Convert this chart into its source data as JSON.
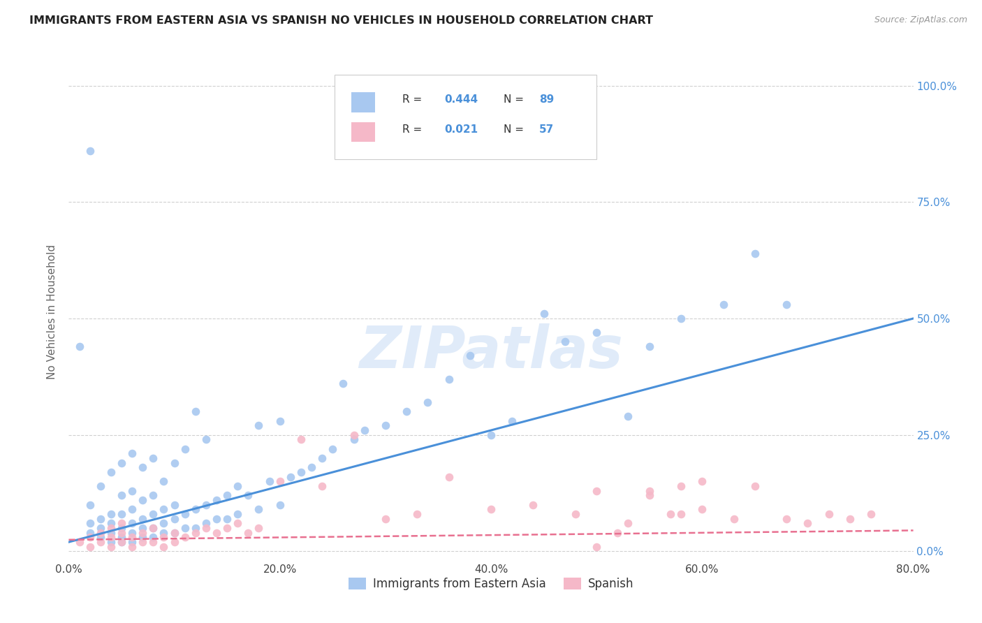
{
  "title": "IMMIGRANTS FROM EASTERN ASIA VS SPANISH NO VEHICLES IN HOUSEHOLD CORRELATION CHART",
  "source": "Source: ZipAtlas.com",
  "ylabel": "No Vehicles in Household",
  "xlim": [
    0.0,
    0.8
  ],
  "ylim": [
    -0.02,
    1.05
  ],
  "ytick_labels": [
    "0.0%",
    "25.0%",
    "50.0%",
    "75.0%",
    "100.0%"
  ],
  "ytick_vals": [
    0.0,
    0.25,
    0.5,
    0.75,
    1.0
  ],
  "xtick_labels": [
    "0.0%",
    "",
    "",
    "",
    "",
    "20.0%",
    "",
    "",
    "",
    "",
    "40.0%",
    "",
    "",
    "",
    "",
    "60.0%",
    "",
    "",
    "",
    "",
    "80.0%"
  ],
  "xtick_vals": [
    0.0,
    0.04,
    0.08,
    0.12,
    0.16,
    0.2,
    0.24,
    0.28,
    0.32,
    0.36,
    0.4,
    0.44,
    0.48,
    0.52,
    0.56,
    0.6,
    0.64,
    0.68,
    0.72,
    0.76,
    0.8
  ],
  "xtick_show_labels": [
    "0.0%",
    "20.0%",
    "40.0%",
    "60.0%",
    "80.0%"
  ],
  "xtick_show_vals": [
    0.0,
    0.2,
    0.4,
    0.6,
    0.8
  ],
  "blue_color": "#a8c8f0",
  "pink_color": "#f5b8c8",
  "blue_line_color": "#4a90d9",
  "pink_line_color": "#e87090",
  "title_color": "#222222",
  "source_color": "#999999",
  "axis_label_color": "#666666",
  "right_tick_color": "#4a90d9",
  "watermark": "ZIPatlas",
  "blue_trend_x": [
    0.0,
    0.8
  ],
  "blue_trend_y": [
    0.02,
    0.5
  ],
  "pink_trend_x": [
    0.0,
    0.8
  ],
  "pink_trend_y": [
    0.025,
    0.045
  ],
  "legend_label1": "Immigrants from Eastern Asia",
  "legend_label2": "Spanish",
  "background_color": "#ffffff",
  "grid_color": "#d0d0d0",
  "blue_scatter_x": [
    0.01,
    0.02,
    0.02,
    0.02,
    0.03,
    0.03,
    0.03,
    0.03,
    0.04,
    0.04,
    0.04,
    0.04,
    0.04,
    0.05,
    0.05,
    0.05,
    0.05,
    0.05,
    0.05,
    0.06,
    0.06,
    0.06,
    0.06,
    0.06,
    0.06,
    0.07,
    0.07,
    0.07,
    0.07,
    0.07,
    0.08,
    0.08,
    0.08,
    0.08,
    0.08,
    0.09,
    0.09,
    0.09,
    0.09,
    0.1,
    0.1,
    0.1,
    0.1,
    0.11,
    0.11,
    0.11,
    0.12,
    0.12,
    0.12,
    0.13,
    0.13,
    0.13,
    0.14,
    0.14,
    0.15,
    0.15,
    0.16,
    0.16,
    0.17,
    0.18,
    0.18,
    0.19,
    0.2,
    0.2,
    0.21,
    0.22,
    0.23,
    0.24,
    0.25,
    0.26,
    0.27,
    0.28,
    0.3,
    0.32,
    0.34,
    0.36,
    0.38,
    0.4,
    0.42,
    0.45,
    0.47,
    0.5,
    0.53,
    0.55,
    0.58,
    0.62,
    0.65,
    0.68,
    0.02
  ],
  "blue_scatter_y": [
    0.44,
    0.04,
    0.06,
    0.1,
    0.03,
    0.05,
    0.07,
    0.14,
    0.02,
    0.04,
    0.06,
    0.08,
    0.17,
    0.02,
    0.03,
    0.05,
    0.08,
    0.12,
    0.19,
    0.02,
    0.04,
    0.06,
    0.09,
    0.13,
    0.21,
    0.03,
    0.05,
    0.07,
    0.11,
    0.18,
    0.03,
    0.05,
    0.08,
    0.12,
    0.2,
    0.04,
    0.06,
    0.09,
    0.15,
    0.04,
    0.07,
    0.1,
    0.19,
    0.05,
    0.08,
    0.22,
    0.05,
    0.09,
    0.3,
    0.06,
    0.1,
    0.24,
    0.07,
    0.11,
    0.07,
    0.12,
    0.08,
    0.14,
    0.12,
    0.09,
    0.27,
    0.15,
    0.1,
    0.28,
    0.16,
    0.17,
    0.18,
    0.2,
    0.22,
    0.36,
    0.24,
    0.26,
    0.27,
    0.3,
    0.32,
    0.37,
    0.42,
    0.25,
    0.28,
    0.51,
    0.45,
    0.47,
    0.29,
    0.44,
    0.5,
    0.53,
    0.64,
    0.53,
    0.86
  ],
  "pink_scatter_x": [
    0.01,
    0.02,
    0.02,
    0.03,
    0.03,
    0.04,
    0.04,
    0.04,
    0.05,
    0.05,
    0.05,
    0.06,
    0.06,
    0.07,
    0.07,
    0.08,
    0.08,
    0.09,
    0.09,
    0.1,
    0.1,
    0.11,
    0.12,
    0.13,
    0.14,
    0.15,
    0.16,
    0.17,
    0.18,
    0.2,
    0.22,
    0.24,
    0.27,
    0.3,
    0.33,
    0.36,
    0.4,
    0.44,
    0.48,
    0.5,
    0.53,
    0.55,
    0.58,
    0.6,
    0.63,
    0.65,
    0.68,
    0.7,
    0.72,
    0.74,
    0.76,
    0.5,
    0.52,
    0.55,
    0.57,
    0.58,
    0.6
  ],
  "pink_scatter_y": [
    0.02,
    0.01,
    0.03,
    0.02,
    0.04,
    0.01,
    0.03,
    0.05,
    0.02,
    0.04,
    0.06,
    0.01,
    0.03,
    0.02,
    0.04,
    0.02,
    0.05,
    0.01,
    0.03,
    0.02,
    0.04,
    0.03,
    0.04,
    0.05,
    0.04,
    0.05,
    0.06,
    0.04,
    0.05,
    0.15,
    0.24,
    0.14,
    0.25,
    0.07,
    0.08,
    0.16,
    0.09,
    0.1,
    0.08,
    0.01,
    0.06,
    0.13,
    0.08,
    0.15,
    0.07,
    0.14,
    0.07,
    0.06,
    0.08,
    0.07,
    0.08,
    0.13,
    0.04,
    0.12,
    0.08,
    0.14,
    0.09
  ]
}
